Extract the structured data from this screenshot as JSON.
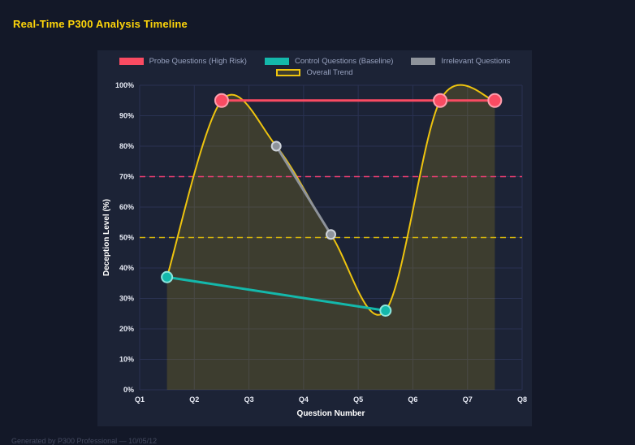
{
  "title": "Real-Time P300 Analysis Timeline",
  "footer": "Generated by P300 Professional — 10/05/12",
  "chart_data": {
    "type": "line",
    "title": "Real-Time P300 Analysis Timeline",
    "xlabel": "Question Number",
    "ylabel": "Deception Level (%)",
    "x_ticks": [
      "Q1",
      "Q2",
      "Q3",
      "Q4",
      "Q5",
      "Q6",
      "Q7",
      "Q8"
    ],
    "y_ticks": [
      "0%",
      "10%",
      "20%",
      "30%",
      "40%",
      "50%",
      "60%",
      "70%",
      "80%",
      "90%",
      "100%"
    ],
    "y_tick_step": 10,
    "xlim": [
      1,
      8
    ],
    "ylim": [
      0,
      100
    ],
    "grid": true,
    "legend_position": "top",
    "series": [
      {
        "name": "Probe Questions (High Risk)",
        "color": "#fa4b62",
        "marker_stroke": "#ff9fae",
        "marker_radius": 8,
        "line_width": 3,
        "smooth": false,
        "fill": false,
        "points": [
          [
            2.5,
            95
          ],
          [
            6.5,
            95
          ],
          [
            7.5,
            95
          ]
        ]
      },
      {
        "name": "Control Questions (Baseline)",
        "color": "#14b8ab",
        "marker_stroke": "#8de7de",
        "marker_radius": 6.5,
        "line_width": 3,
        "smooth": false,
        "fill": false,
        "points": [
          [
            1.5,
            37
          ],
          [
            5.5,
            26
          ]
        ]
      },
      {
        "name": "Irrelevant Questions",
        "color": "#8e939b",
        "marker_stroke": "#ced3da",
        "marker_radius": 5.5,
        "line_width": 3,
        "smooth": false,
        "fill": false,
        "points": [
          [
            3.5,
            80
          ],
          [
            4.5,
            51
          ]
        ]
      },
      {
        "name": "Overall Trend",
        "color": "#eec40f",
        "fill_color": "rgba(238,196,15,0.16)",
        "marker_radius": 0,
        "line_width": 2,
        "smooth": true,
        "fill": true,
        "points": [
          [
            1.5,
            37
          ],
          [
            2.5,
            95
          ],
          [
            3.5,
            80
          ],
          [
            4.5,
            51
          ],
          [
            5.5,
            26
          ],
          [
            6.5,
            95
          ],
          [
            7.5,
            95
          ]
        ]
      }
    ],
    "thresholds": [
      {
        "value": 70,
        "color": "#ee3e72",
        "style": "dashed"
      },
      {
        "value": 50,
        "color": "#d6b60c",
        "style": "dashed"
      }
    ],
    "colors": {
      "grid": "#2a3252",
      "tick_label": "#e8ebf5",
      "axis_title": "#ffffff",
      "title": "#ffd60a"
    }
  }
}
